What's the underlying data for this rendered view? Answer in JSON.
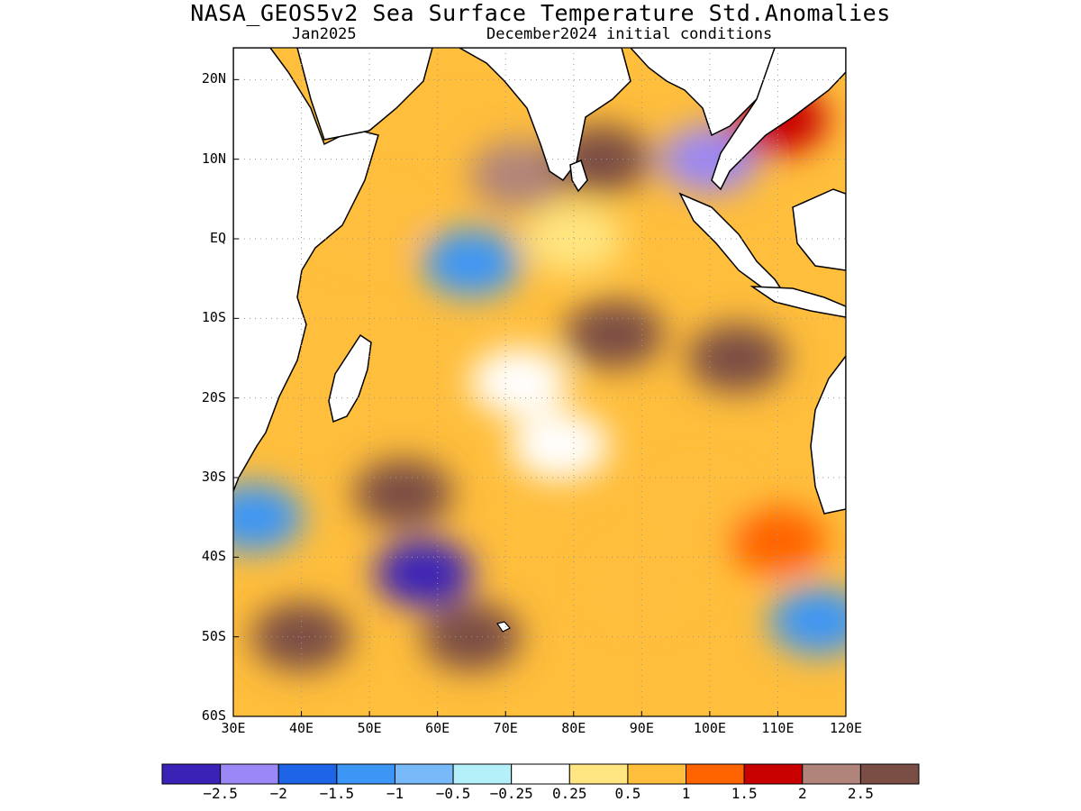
{
  "title": "NASA_GEOS5v2 Sea Surface Temperature Std.Anomalies",
  "subtitle_left": "Jan2025",
  "subtitle_right": "December2024 initial conditions",
  "chart_data": {
    "type": "heatmap",
    "variable": "Sea Surface Temperature Std.Anomalies",
    "lon_range": [
      30,
      120
    ],
    "lat_range": [
      -60,
      24
    ],
    "x_tick_labels": [
      "30E",
      "40E",
      "50E",
      "60E",
      "70E",
      "80E",
      "90E",
      "100E",
      "110E",
      "120E"
    ],
    "y_tick_labels": [
      "20N",
      "10N",
      "EQ",
      "10S",
      "20S",
      "30S",
      "40S",
      "50S",
      "60S"
    ],
    "grid": true,
    "colorbar": {
      "colors": [
        "#3a22b7",
        "#9b87f5",
        "#1e64e6",
        "#3c96f5",
        "#78b9fa",
        "#b4f0fa",
        "#ffffff",
        "#ffe682",
        "#ffbe3c",
        "#ff6400",
        "#c80000",
        "#b0847a",
        "#7a4e44"
      ],
      "tick_labels": [
        "−2.5",
        "−2",
        "−1.5",
        "−1",
        "−0.5",
        "−0.25",
        "0.25",
        "0.5",
        "1",
        "1.5",
        "2",
        "2.5"
      ],
      "bounds": [
        -2.5,
        -2,
        -1.5,
        -1,
        -0.5,
        -0.25,
        0.25,
        0.5,
        1,
        1.5,
        2,
        2.5
      ]
    },
    "anomaly_regions": [
      {
        "lon": 65,
        "lat": -3,
        "value": -1.2
      },
      {
        "lon": 58,
        "lat": -42,
        "value": -2.6
      },
      {
        "lon": 100,
        "lat": 10,
        "value": -2.2
      },
      {
        "lon": 33,
        "lat": -35,
        "value": -1.5
      },
      {
        "lon": 116,
        "lat": -48,
        "value": -1.2
      },
      {
        "lon": 80,
        "lat": 0,
        "value": 0.4
      },
      {
        "lon": 72,
        "lat": -18,
        "value": 0.1
      },
      {
        "lon": 78,
        "lat": -26,
        "value": 0.1
      },
      {
        "lon": 72,
        "lat": 8,
        "value": 2.0
      },
      {
        "lon": 84,
        "lat": 10,
        "value": 2.6
      },
      {
        "lon": 86,
        "lat": -12,
        "value": 2.6
      },
      {
        "lon": 104,
        "lat": -15,
        "value": 2.6
      },
      {
        "lon": 55,
        "lat": -32,
        "value": 2.6
      },
      {
        "lon": 40,
        "lat": -50,
        "value": 2.6
      },
      {
        "lon": 65,
        "lat": -50,
        "value": 2.6
      },
      {
        "lon": 98,
        "lat": -34,
        "value": 0.8
      },
      {
        "lon": 90,
        "lat": -43,
        "value": 0.8
      },
      {
        "lon": 110,
        "lat": -38,
        "value": 1.2
      },
      {
        "lon": 50,
        "lat": 2,
        "value": 0.8
      },
      {
        "lon": 110,
        "lat": 15,
        "value": 1.8
      }
    ]
  }
}
